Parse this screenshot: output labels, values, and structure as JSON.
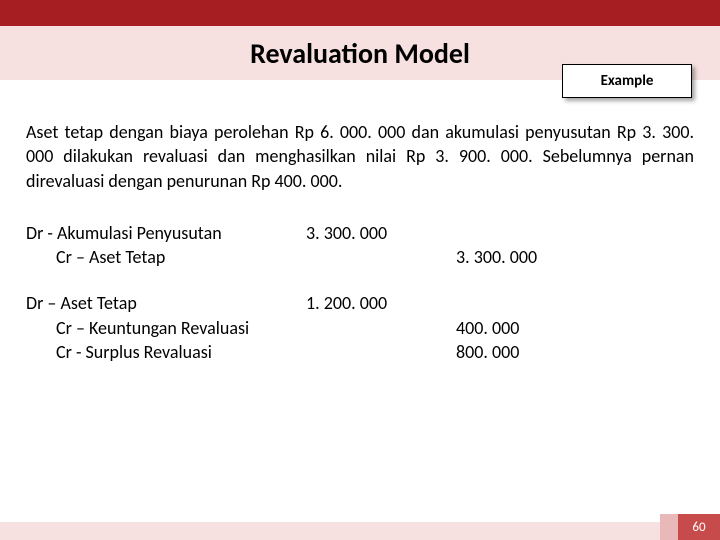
{
  "colors": {
    "topbar": "#a61e22",
    "titleband": "#f6e0e0",
    "bottombar": "#f6e0e0",
    "pagenum_bg": "#c84b4b",
    "smallblock_bg": "#e9b8b8",
    "text": "#000000",
    "badge_bg": "#ffffff",
    "badge_border": "#000000"
  },
  "title": "Revaluation Model",
  "badge": "Example",
  "paragraph": "Aset tetap dengan biaya perolehan Rp 6. 000. 000 dan akumulasi penyusutan Rp 3. 300. 000 dilakukan revaluasi dan menghasilkan nilai Rp 3. 900. 000. Sebelumnya pernan direvaluasi dengan penurunan Rp 400. 000.",
  "entry1": {
    "dr_label": "Dr - Akumulasi Penyusutan",
    "dr_amount": "3. 300. 000",
    "cr_label": "Cr – Aset Tetap",
    "cr_amount": "3. 300. 000"
  },
  "entry2": {
    "dr_label": "Dr – Aset Tetap",
    "dr_amount": "1. 200. 000",
    "cr1_label": "Cr – Keuntungan Revaluasi",
    "cr1_amount": "400. 000",
    "cr2_label": "Cr -  Surplus Revaluasi",
    "cr2_amount": "800. 000"
  },
  "page_number": "60"
}
